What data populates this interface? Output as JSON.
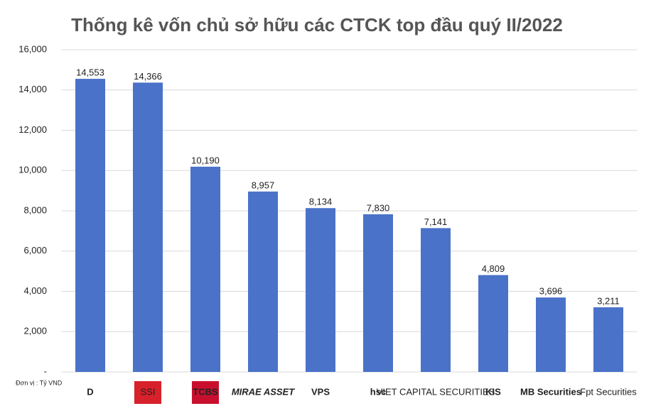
{
  "chart_data": {
    "type": "bar",
    "title": "Thống kê vốn chủ sở hữu các CTCK top đầu quý II/2022",
    "unit_note": "Đơn vị : Tỷ VND",
    "categories": [
      "D",
      "SSI",
      "TCBS",
      "MIRAE ASSET",
      "VPS",
      "hsc",
      "VIET CAPITAL SECURITIES",
      "KIS",
      "MB Securities",
      "Fpt Securities"
    ],
    "values": [
      14553,
      14366,
      10190,
      8957,
      8134,
      7830,
      7141,
      4809,
      3696,
      3211
    ],
    "value_labels": [
      "14,553",
      "14,366",
      "10,190",
      "8,957",
      "8,134",
      "7,830",
      "7,141",
      "4,809",
      "3,696",
      "3,211"
    ],
    "color": "#4a72c8",
    "ylim": [
      0,
      16000
    ],
    "yticks": [
      {
        "value": 0,
        "label": "-"
      },
      {
        "value": 2000,
        "label": "2,000"
      },
      {
        "value": 4000,
        "label": "4,000"
      },
      {
        "value": 6000,
        "label": "6,000"
      },
      {
        "value": 8000,
        "label": "8,000"
      },
      {
        "value": 10000,
        "label": "10,000"
      },
      {
        "value": 12000,
        "label": "12,000"
      },
      {
        "value": 14000,
        "label": "14,000"
      },
      {
        "value": 16000,
        "label": "16,000"
      }
    ],
    "grid": true
  }
}
